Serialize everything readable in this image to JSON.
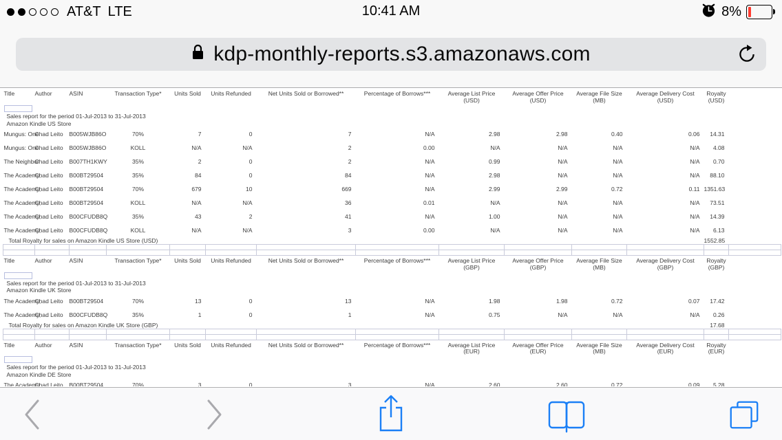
{
  "status_bar": {
    "signal": {
      "filled_dots": 2,
      "total_dots": 5
    },
    "carrier": "AT&T",
    "network": "LTE",
    "time": "10:41 AM",
    "battery_percent": "8%",
    "battery_fill_color": "#ff3b30",
    "icons": {
      "alarm": "alarm-clock-icon",
      "battery": "battery-low-icon",
      "signal": "signal-dots"
    }
  },
  "address_bar": {
    "url": "kdp-monthly-reports.s3.amazonaws.com",
    "icons": {
      "lock": "lock-icon",
      "refresh": "refresh-icon"
    }
  },
  "report": {
    "header_labels": [
      "Title",
      "Author",
      "ASIN",
      "Transaction Type*",
      "Units Sold",
      "Units Refunded",
      "Net Units Sold or Borrowed**",
      "Percentage of Borrows***",
      "Average List Price",
      "Average Offer Price",
      "Average File Size",
      "Average Delivery Cost",
      "Royalty"
    ],
    "sections": [
      {
        "store_id": "us",
        "header_subs": [
          "",
          "",
          "",
          "",
          "",
          "",
          "",
          "",
          "(USD)",
          "(USD)",
          "(MB)",
          "(USD)",
          "(USD)"
        ],
        "period": "Sales report for the period 01-Jul-2013 to 31-Jul-2013",
        "store": "Amazon Kindle US Store",
        "rows": [
          [
            "Mungus: One",
            "Chad Leito",
            "B005WJB86O",
            "70%",
            "7",
            "0",
            "7",
            "N/A",
            "2.98",
            "2.98",
            "0.40",
            "0.06",
            "14.31"
          ],
          [
            "Mungus: One",
            "Chad Leito",
            "B005WJB86O",
            "KOLL",
            "N/A",
            "N/A",
            "2",
            "0.00",
            "N/A",
            "N/A",
            "N/A",
            "N/A",
            "4.08"
          ],
          [
            "The Neighbor",
            "Chad Leito",
            "B007TH1KWY",
            "35%",
            "2",
            "0",
            "2",
            "N/A",
            "0.99",
            "N/A",
            "N/A",
            "N/A",
            "0.70"
          ],
          [
            "The Academy,",
            "Chad Leito",
            "B00BT29504",
            "35%",
            "84",
            "0",
            "84",
            "N/A",
            "2.98",
            "N/A",
            "N/A",
            "N/A",
            "88.10"
          ],
          [
            "The Academy,",
            "Chad Leito",
            "B00BT29504",
            "70%",
            "679",
            "10",
            "669",
            "N/A",
            "2.99",
            "2.99",
            "0.72",
            "0.11",
            "1351.63"
          ],
          [
            "The Academy,",
            "Chad Leito",
            "B00BT29504",
            "KOLL",
            "N/A",
            "N/A",
            "36",
            "0.01",
            "N/A",
            "N/A",
            "N/A",
            "N/A",
            "73.51"
          ],
          [
            "The Academy,",
            "Chad Leito",
            "B00CFUDB8Q",
            "35%",
            "43",
            "2",
            "41",
            "N/A",
            "1.00",
            "N/A",
            "N/A",
            "N/A",
            "14.39"
          ],
          [
            "The Academy,",
            "Chad Leito",
            "B00CFUDB8Q",
            "KOLL",
            "N/A",
            "N/A",
            "3",
            "0.00",
            "N/A",
            "N/A",
            "N/A",
            "N/A",
            "6.13"
          ]
        ],
        "total_label": "Total Royalty for sales on Amazon Kindle US Store (USD)",
        "total_value": "1552.85",
        "grid_rows": true
      },
      {
        "store_id": "uk",
        "header_subs": [
          "",
          "",
          "",
          "",
          "",
          "",
          "",
          "",
          "(GBP)",
          "(GBP)",
          "(MB)",
          "(GBP)",
          "(GBP)"
        ],
        "period": "Sales report for the period 01-Jul-2013 to 31-Jul-2013",
        "store": "Amazon Kindle UK Store",
        "rows": [
          [
            "The Academy,",
            "Chad Leito",
            "B00BT29504",
            "70%",
            "13",
            "0",
            "13",
            "N/A",
            "1.98",
            "1.98",
            "0.72",
            "0.07",
            "17.42"
          ],
          [
            "The Academy,",
            "Chad Leito",
            "B00CFUDB8Q",
            "35%",
            "1",
            "0",
            "1",
            "N/A",
            "0.75",
            "N/A",
            "N/A",
            "N/A",
            "0.26"
          ]
        ],
        "total_label": "Total Royalty for sales on Amazon Kindle UK Store (GBP)",
        "total_value": "17.68",
        "grid_rows": true
      },
      {
        "store_id": "de",
        "header_subs": [
          "",
          "",
          "",
          "",
          "",
          "",
          "",
          "",
          "(EUR)",
          "(EUR)",
          "(MB)",
          "(EUR)",
          "(EUR)"
        ],
        "period": "Sales report for the period 01-Jul-2013 to 31-Jul-2013",
        "store": "Amazon Kindle DE Store",
        "rows": [
          [
            "The Academy,",
            "Chad Leito",
            "B00BT29504",
            "70%",
            "3",
            "0",
            "3",
            "N/A",
            "2.60",
            "2.60",
            "0.72",
            "0.09",
            "5.28"
          ]
        ],
        "total_label": "",
        "total_value": "",
        "grid_rows": false
      }
    ]
  },
  "toolbar": {
    "icons": [
      "back-icon",
      "forward-icon",
      "share-icon",
      "bookmarks-icon",
      "tabs-icon"
    ],
    "accent_color": "#1a7ff6",
    "disabled_color": "#a9a9ad"
  }
}
